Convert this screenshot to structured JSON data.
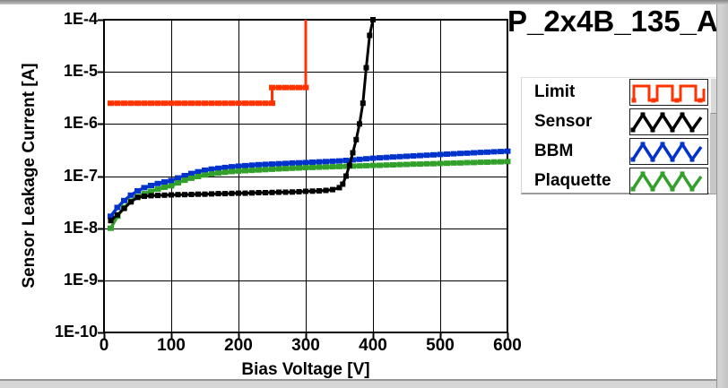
{
  "title": "P_2x4B_135_A",
  "axes": {
    "y_label": "Sensor Leakage Current [A]",
    "x_label": "Bias Voltage [V]",
    "y_ticks": [
      "1E-4",
      "1E-5",
      "1E-6",
      "1E-7",
      "1E-8",
      "1E-9",
      "1E-10"
    ],
    "x_ticks": [
      "0",
      "100",
      "200",
      "300",
      "400",
      "500",
      "600"
    ]
  },
  "legend": {
    "items": [
      {
        "label": "Limit",
        "color": "#FF3300",
        "icon": "square-wave-icon"
      },
      {
        "label": "Sensor",
        "color": "#000000",
        "icon": "triangle-wave-icon"
      },
      {
        "label": "BBM",
        "color": "#0033CC",
        "icon": "triangle-wave-icon"
      },
      {
        "label": "Plaquette",
        "color": "#33A02C",
        "icon": "triangle-wave-icon"
      }
    ]
  },
  "chart_data": {
    "type": "line",
    "title": "P_2x4B_135_A",
    "xlabel": "Bias Voltage [V]",
    "ylabel": "Sensor Leakage Current [A]",
    "x_range": [
      0,
      600
    ],
    "y_range": [
      1e-10,
      0.0001
    ],
    "y_scale": "log",
    "grid": true,
    "legend_position": "right",
    "x_tick_values": [
      0,
      100,
      200,
      300,
      400,
      500,
      600
    ],
    "y_tick_values": [
      0.0001,
      1e-05,
      1e-06,
      1e-07,
      1e-08,
      1e-09,
      1e-10
    ],
    "grid_color": "#000000",
    "series": [
      {
        "name": "Limit",
        "color": "#FF3300",
        "style": "step-limit",
        "markers_skip_last": true,
        "x": [
          10,
          20,
          30,
          40,
          50,
          60,
          70,
          80,
          90,
          100,
          110,
          120,
          130,
          140,
          150,
          160,
          170,
          180,
          190,
          200,
          210,
          220,
          230,
          240,
          250,
          250,
          260,
          270,
          280,
          290,
          300,
          300
        ],
        "y": [
          2.5e-06,
          2.5e-06,
          2.5e-06,
          2.5e-06,
          2.5e-06,
          2.5e-06,
          2.5e-06,
          2.5e-06,
          2.5e-06,
          2.5e-06,
          2.5e-06,
          2.5e-06,
          2.5e-06,
          2.5e-06,
          2.5e-06,
          2.5e-06,
          2.5e-06,
          2.5e-06,
          2.5e-06,
          2.5e-06,
          2.5e-06,
          2.5e-06,
          2.5e-06,
          2.5e-06,
          2.5e-06,
          5e-06,
          5e-06,
          5e-06,
          5e-06,
          5e-06,
          5e-06,
          0.0001
        ]
      },
      {
        "name": "Sensor",
        "color": "#000000",
        "style": "line-markers",
        "markers_skip_last": false,
        "x": [
          10,
          20,
          30,
          40,
          50,
          60,
          70,
          80,
          90,
          100,
          110,
          120,
          130,
          140,
          150,
          160,
          170,
          180,
          190,
          200,
          210,
          220,
          230,
          240,
          250,
          260,
          270,
          280,
          290,
          300,
          310,
          320,
          330,
          340,
          350,
          355,
          360,
          365,
          370,
          375,
          380,
          385,
          390,
          395,
          400
        ],
        "y": [
          1.4e-08,
          1.8e-08,
          2.4e-08,
          3.2e-08,
          3.9e-08,
          4.1e-08,
          4.2e-08,
          4.25e-08,
          4.3e-08,
          4.35e-08,
          4.4e-08,
          4.4e-08,
          4.45e-08,
          4.5e-08,
          4.5e-08,
          4.55e-08,
          4.6e-08,
          4.6e-08,
          4.65e-08,
          4.7e-08,
          4.7e-08,
          4.75e-08,
          4.8e-08,
          4.8e-08,
          4.85e-08,
          4.9e-08,
          4.9e-08,
          4.95e-08,
          5e-08,
          5.1e-08,
          5.15e-08,
          5.2e-08,
          5.3e-08,
          5.5e-08,
          6e-08,
          7e-08,
          1e-07,
          1.6e-07,
          2.8e-07,
          5e-07,
          1e-06,
          2.5e-06,
          1.2e-05,
          5e-05,
          0.0001
        ]
      },
      {
        "name": "BBM",
        "color": "#0033CC",
        "style": "line-markers",
        "markers_skip_last": false,
        "x": [
          10,
          20,
          30,
          40,
          50,
          60,
          70,
          80,
          90,
          100,
          110,
          120,
          130,
          140,
          150,
          160,
          170,
          180,
          190,
          200,
          210,
          220,
          230,
          240,
          250,
          260,
          270,
          280,
          290,
          300,
          310,
          320,
          330,
          340,
          350,
          360,
          370,
          380,
          390,
          400,
          410,
          420,
          430,
          440,
          450,
          460,
          470,
          480,
          490,
          500,
          510,
          520,
          530,
          540,
          550,
          560,
          570,
          580,
          590,
          600
        ],
        "y": [
          1.7e-08,
          2.5e-08,
          3.4e-08,
          4.3e-08,
          5.2e-08,
          6e-08,
          6.6e-08,
          7.2e-08,
          7.7e-08,
          8.2e-08,
          9.2e-08,
          1.02e-07,
          1.12e-07,
          1.21e-07,
          1.3e-07,
          1.36e-07,
          1.41e-07,
          1.46e-07,
          1.51e-07,
          1.55e-07,
          1.58e-07,
          1.62e-07,
          1.65e-07,
          1.68e-07,
          1.7e-07,
          1.73e-07,
          1.75e-07,
          1.78e-07,
          1.8e-07,
          1.82e-07,
          1.85e-07,
          1.88e-07,
          1.9e-07,
          1.93e-07,
          1.95e-07,
          2e-07,
          2.05e-07,
          2.1e-07,
          2.15e-07,
          2.2e-07,
          2.24e-07,
          2.28e-07,
          2.32e-07,
          2.36e-07,
          2.4e-07,
          2.44e-07,
          2.48e-07,
          2.52e-07,
          2.56e-07,
          2.6e-07,
          2.64e-07,
          2.68e-07,
          2.72e-07,
          2.76e-07,
          2.8e-07,
          2.84e-07,
          2.88e-07,
          2.92e-07,
          2.96e-07,
          3e-07
        ]
      },
      {
        "name": "Plaquette",
        "color": "#33A02C",
        "style": "line-markers",
        "markers_skip_last": false,
        "x": [
          10,
          20,
          30,
          40,
          50,
          60,
          70,
          80,
          90,
          100,
          110,
          120,
          130,
          140,
          150,
          160,
          170,
          180,
          190,
          200,
          210,
          220,
          230,
          240,
          250,
          260,
          270,
          280,
          290,
          300,
          310,
          320,
          330,
          340,
          350,
          360,
          370,
          380,
          390,
          400,
          410,
          420,
          430,
          440,
          450,
          460,
          470,
          480,
          490,
          500,
          510,
          520,
          530,
          540,
          550,
          560,
          570,
          580,
          590,
          600
        ],
        "y": [
          1e-08,
          1.7e-08,
          2.5e-08,
          3.3e-08,
          4e-08,
          4.6e-08,
          5.1e-08,
          5.6e-08,
          6.1e-08,
          6.5e-08,
          7.4e-08,
          8.3e-08,
          9.1e-08,
          9.8e-08,
          1.05e-07,
          1.1e-07,
          1.14e-07,
          1.18e-07,
          1.22e-07,
          1.25e-07,
          1.27e-07,
          1.29e-07,
          1.31e-07,
          1.33e-07,
          1.35e-07,
          1.37e-07,
          1.39e-07,
          1.41e-07,
          1.43e-07,
          1.45e-07,
          1.46e-07,
          1.48e-07,
          1.49e-07,
          1.51e-07,
          1.52e-07,
          1.54e-07,
          1.55e-07,
          1.57e-07,
          1.58e-07,
          1.6e-07,
          1.61e-07,
          1.63e-07,
          1.64e-07,
          1.66e-07,
          1.67e-07,
          1.69e-07,
          1.7e-07,
          1.72e-07,
          1.73e-07,
          1.75e-07,
          1.76e-07,
          1.78e-07,
          1.79e-07,
          1.81e-07,
          1.82e-07,
          1.84e-07,
          1.85e-07,
          1.87e-07,
          1.88e-07,
          1.9e-07
        ]
      }
    ]
  }
}
